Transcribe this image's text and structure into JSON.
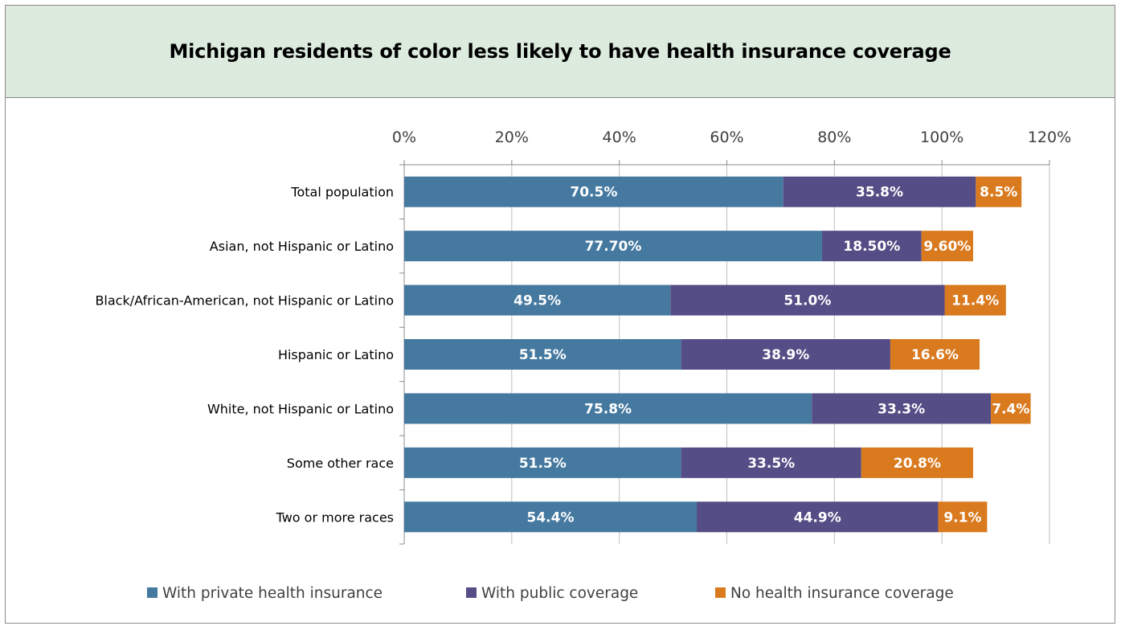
{
  "chart_data": {
    "type": "bar",
    "orientation": "horizontal",
    "stacked": true,
    "title": "Michigan residents of color less likely to have health insurance coverage",
    "categories": [
      "Total population",
      "Asian, not Hispanic or Latino",
      "Black/African-American, not Hispanic or Latino",
      "Hispanic or Latino",
      "White, not Hispanic or Latino",
      "Some other race",
      "Two or more races"
    ],
    "series": [
      {
        "name": "With private health insurance",
        "color": "#4579a0",
        "values": [
          70.5,
          77.7,
          49.5,
          51.5,
          75.8,
          51.5,
          54.4
        ],
        "labels": [
          "70.5%",
          "77.70%",
          "49.5%",
          "51.5%",
          "75.8%",
          "51.5%",
          "54.4%"
        ]
      },
      {
        "name": "With public coverage",
        "color": "#554d85",
        "values": [
          35.8,
          18.5,
          51.0,
          38.9,
          33.3,
          33.5,
          44.9
        ],
        "labels": [
          "35.8%",
          "18.50%",
          "51.0%",
          "38.9%",
          "33.3%",
          "33.5%",
          "44.9%"
        ]
      },
      {
        "name": "No health insurance coverage",
        "color": "#d97a1f",
        "values": [
          8.5,
          9.6,
          11.4,
          16.6,
          7.4,
          20.8,
          9.1
        ],
        "labels": [
          "8.5%",
          "9.60%",
          "11.4%",
          "16.6%",
          "7.4%",
          "20.8%",
          "9.1%"
        ]
      }
    ],
    "xlim": [
      0,
      120
    ],
    "xticks": [
      0,
      20,
      40,
      60,
      80,
      100,
      120
    ],
    "xtick_labels": [
      "0%",
      "20%",
      "40%",
      "60%",
      "80%",
      "100%",
      "120%"
    ],
    "xaxis_position": "top",
    "grid": "vertical",
    "legend_position": "bottom"
  }
}
